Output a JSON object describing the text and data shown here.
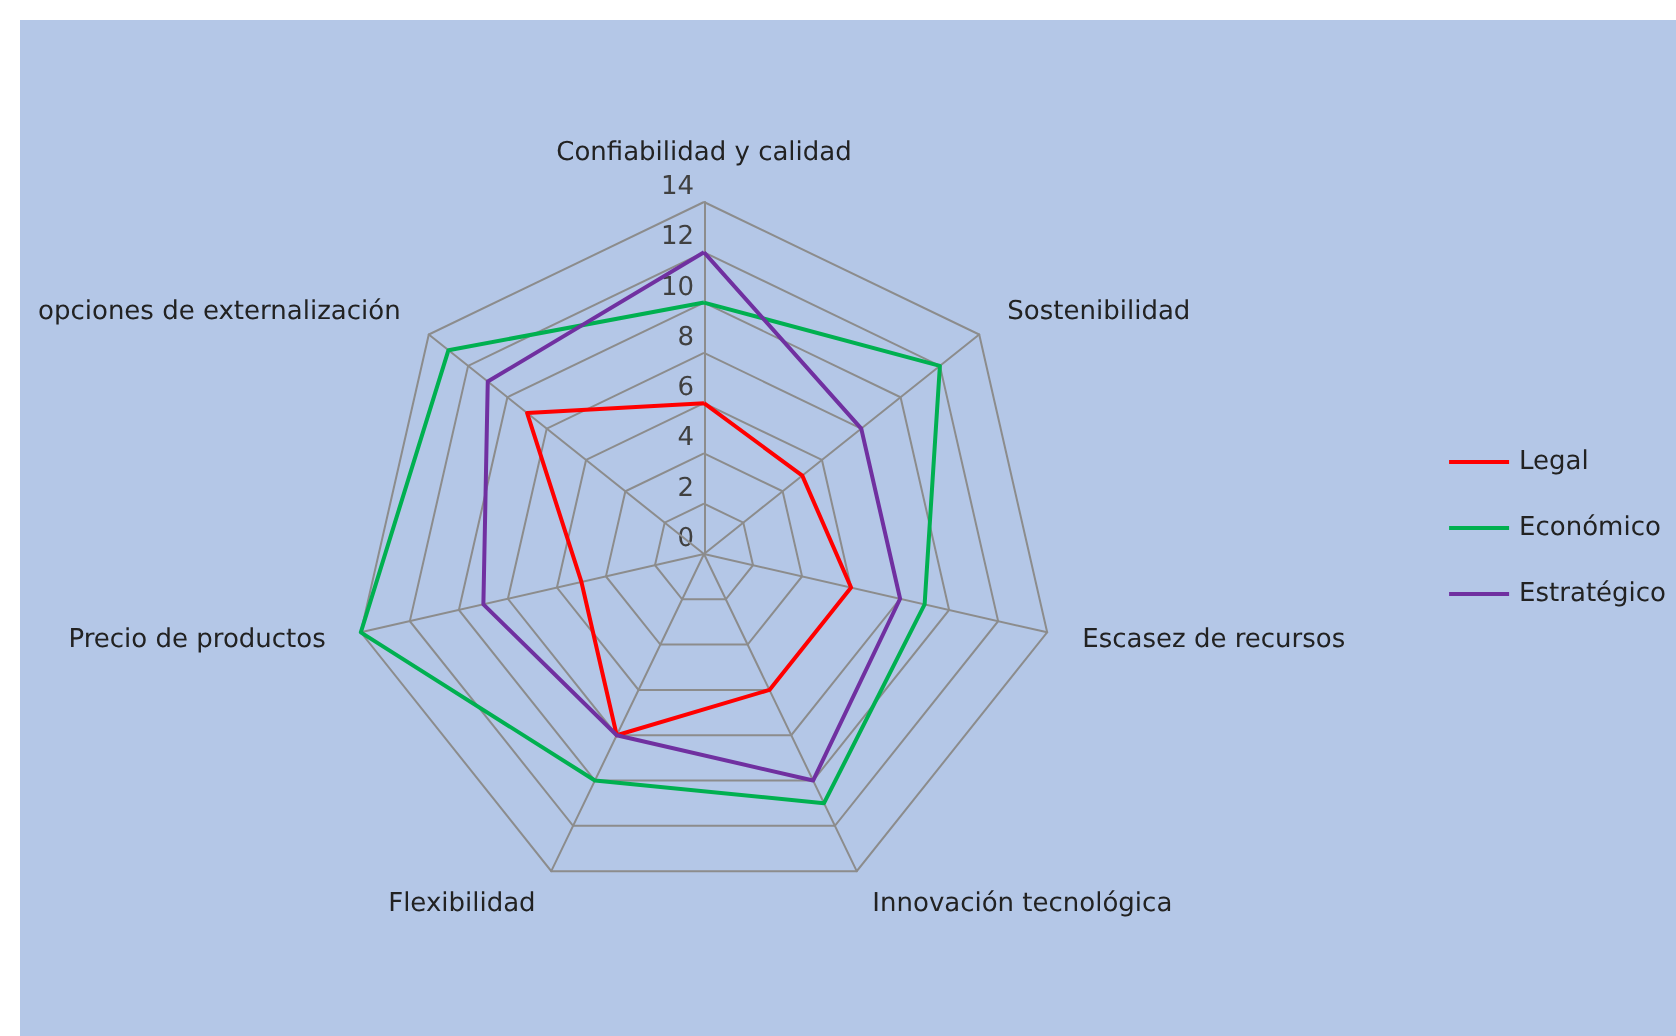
{
  "chart_data": {
    "type": "radar",
    "categories": [
      "Confiabilidad y calidad",
      "Sostenibilidad",
      "Escasez de recursos",
      "Innovación tecnológica",
      "Flexibilidad",
      "Precio de productos",
      "opciones de externalización"
    ],
    "series": [
      {
        "name": "Legal",
        "color": "#ff0000",
        "values": [
          6,
          5,
          6,
          6,
          8,
          5,
          9
        ]
      },
      {
        "name": "Económico",
        "color": "#00b050",
        "values": [
          10,
          12,
          9,
          11,
          10,
          14,
          13
        ]
      },
      {
        "name": "Estratégico",
        "color": "#7030a0",
        "values": [
          12,
          8,
          8,
          10,
          8,
          9,
          11
        ]
      }
    ],
    "ylim": [
      0,
      14
    ],
    "yticks": [
      0,
      2,
      4,
      6,
      8,
      10,
      12,
      14
    ],
    "grid": true,
    "legend": "right",
    "marker": "none"
  }
}
